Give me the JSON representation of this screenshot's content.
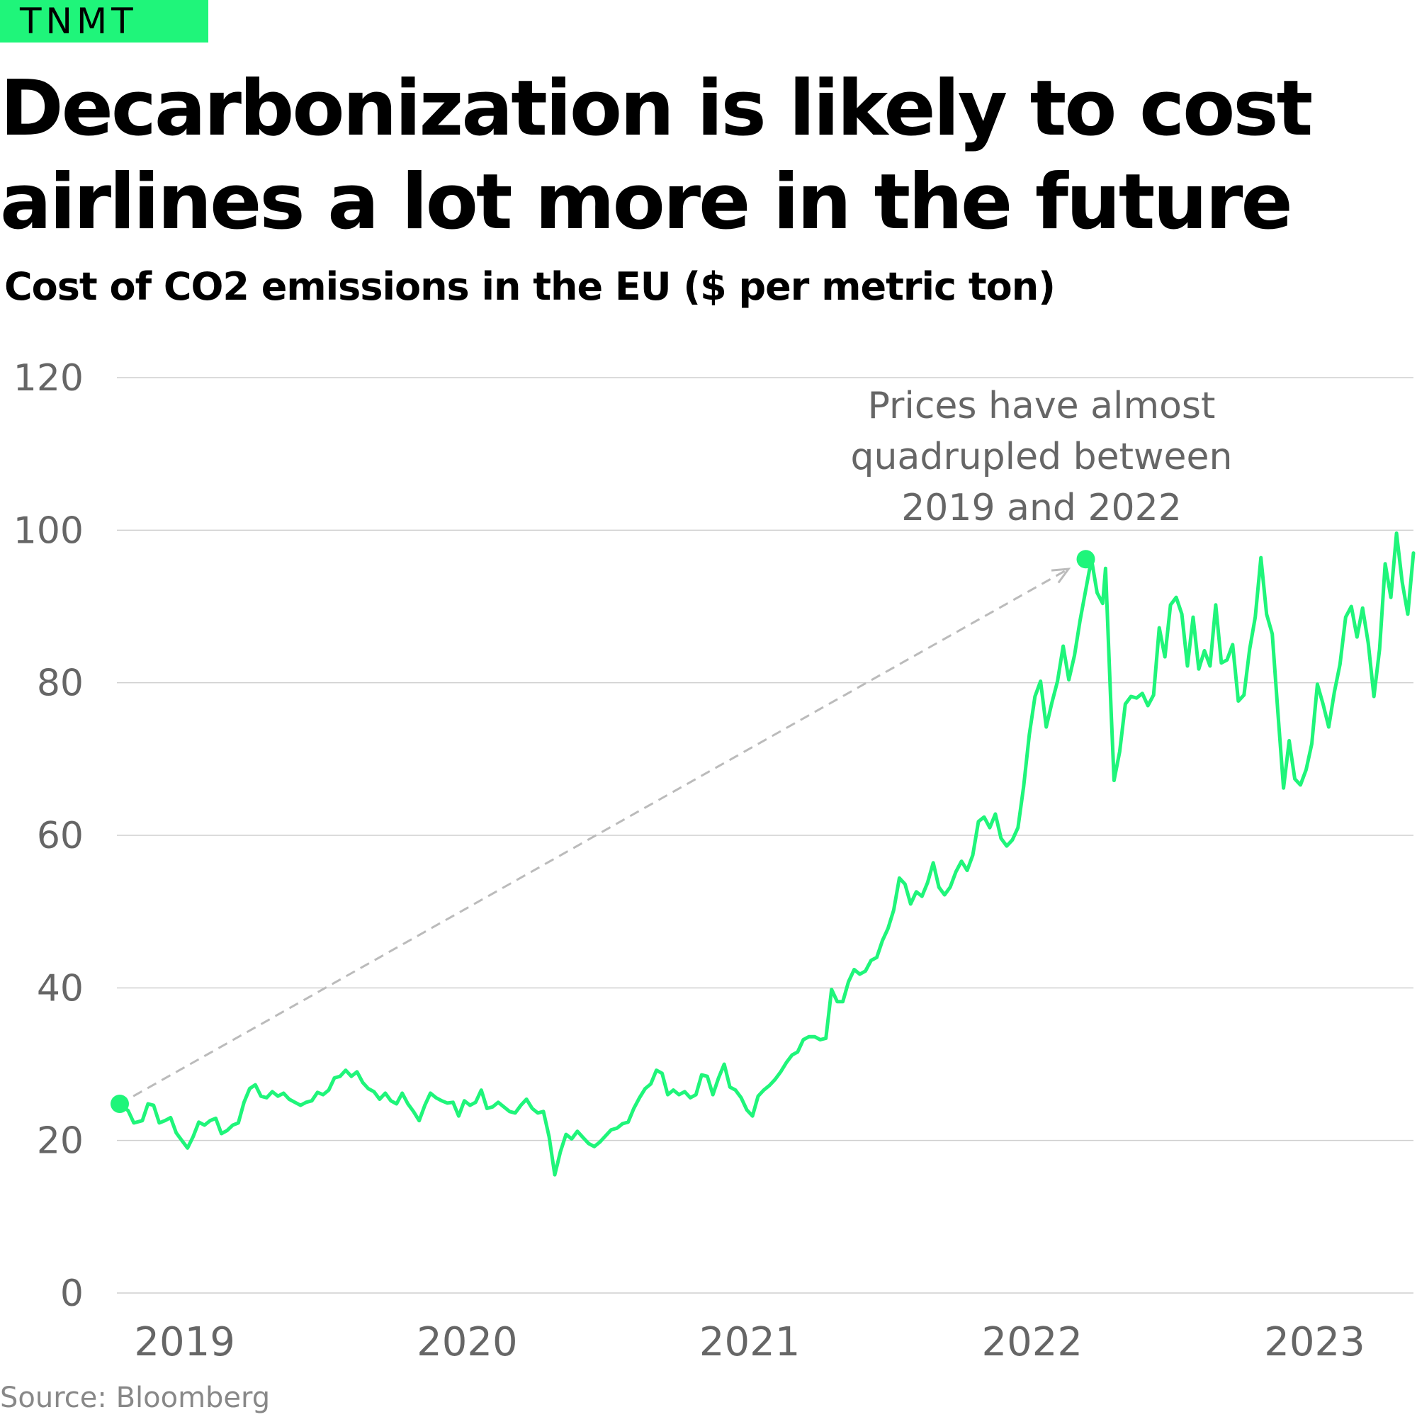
{
  "logo": {
    "text": "TNMT",
    "color": "#1ff57a"
  },
  "header": {
    "title": "Decarbonization is likely to cost airlines a lot more in the future",
    "subtitle": "Cost of CO2 emissions in the EU ($ per metric ton)"
  },
  "footer": {
    "source": "Source: Bloomberg"
  },
  "chart_data": {
    "type": "line",
    "title": "Decarbonization is likely to cost airlines a lot more in the future",
    "subtitle": "Cost of CO2 emissions in the EU ($ per metric ton)",
    "xlabel": "",
    "ylabel": "",
    "ylim": [
      0,
      120
    ],
    "xlim": [
      2018.76,
      2023.35
    ],
    "yticks": [
      0,
      20,
      40,
      60,
      80,
      100,
      120
    ],
    "xticks": [
      {
        "value": 2019,
        "label": "2019"
      },
      {
        "value": 2020,
        "label": "2020"
      },
      {
        "value": 2021,
        "label": "2021"
      },
      {
        "value": 2022,
        "label": "2022"
      },
      {
        "value": 2023,
        "label": "2023"
      }
    ],
    "grid": true,
    "line_color": "#1ff57a",
    "series": [
      {
        "values": [
          [
            2018.77,
            24.8
          ],
          [
            2018.8,
            23.9
          ],
          [
            2018.82,
            22.3
          ],
          [
            2018.85,
            22.6
          ],
          [
            2018.87,
            24.8
          ],
          [
            2018.89,
            24.6
          ],
          [
            2018.91,
            22.3
          ],
          [
            2018.93,
            22.6
          ],
          [
            2018.95,
            23.0
          ],
          [
            2018.97,
            21.0
          ],
          [
            2018.99,
            20.0
          ],
          [
            2019.01,
            19.0
          ],
          [
            2019.03,
            20.5
          ],
          [
            2019.05,
            22.4
          ],
          [
            2019.07,
            22.0
          ],
          [
            2019.09,
            22.6
          ],
          [
            2019.11,
            22.9
          ],
          [
            2019.13,
            20.9
          ],
          [
            2019.15,
            21.3
          ],
          [
            2019.17,
            22.0
          ],
          [
            2019.19,
            22.3
          ],
          [
            2019.21,
            25.0
          ],
          [
            2019.23,
            26.8
          ],
          [
            2019.25,
            27.3
          ],
          [
            2019.27,
            25.8
          ],
          [
            2019.29,
            25.6
          ],
          [
            2019.31,
            26.4
          ],
          [
            2019.33,
            25.8
          ],
          [
            2019.35,
            26.2
          ],
          [
            2019.37,
            25.4
          ],
          [
            2019.39,
            25.0
          ],
          [
            2019.41,
            24.6
          ],
          [
            2019.43,
            25.0
          ],
          [
            2019.45,
            25.2
          ],
          [
            2019.47,
            26.3
          ],
          [
            2019.49,
            26.0
          ],
          [
            2019.51,
            26.6
          ],
          [
            2019.53,
            28.2
          ],
          [
            2019.55,
            28.4
          ],
          [
            2019.57,
            29.2
          ],
          [
            2019.59,
            28.4
          ],
          [
            2019.61,
            29.0
          ],
          [
            2019.63,
            27.6
          ],
          [
            2019.65,
            26.8
          ],
          [
            2019.67,
            26.4
          ],
          [
            2019.69,
            25.4
          ],
          [
            2019.71,
            26.2
          ],
          [
            2019.73,
            25.2
          ],
          [
            2019.75,
            24.8
          ],
          [
            2019.77,
            26.2
          ],
          [
            2019.79,
            24.8
          ],
          [
            2019.81,
            23.8
          ],
          [
            2019.83,
            22.6
          ],
          [
            2019.85,
            24.6
          ],
          [
            2019.87,
            26.2
          ],
          [
            2019.89,
            25.6
          ],
          [
            2019.91,
            25.2
          ],
          [
            2019.93,
            24.9
          ],
          [
            2019.95,
            25.0
          ],
          [
            2019.97,
            23.2
          ],
          [
            2019.99,
            25.2
          ],
          [
            2020.01,
            24.6
          ],
          [
            2020.03,
            25.0
          ],
          [
            2020.05,
            26.6
          ],
          [
            2020.07,
            24.2
          ],
          [
            2020.09,
            24.4
          ],
          [
            2020.11,
            25.0
          ],
          [
            2020.13,
            24.4
          ],
          [
            2020.15,
            23.8
          ],
          [
            2020.17,
            23.6
          ],
          [
            2020.19,
            24.6
          ],
          [
            2020.21,
            25.4
          ],
          [
            2020.23,
            24.2
          ],
          [
            2020.25,
            23.6
          ],
          [
            2020.27,
            23.8
          ],
          [
            2020.29,
            20.5
          ],
          [
            2020.31,
            15.5
          ],
          [
            2020.32,
            17.0
          ],
          [
            2020.33,
            18.5
          ],
          [
            2020.35,
            20.8
          ],
          [
            2020.37,
            20.2
          ],
          [
            2020.39,
            21.2
          ],
          [
            2020.41,
            20.4
          ],
          [
            2020.43,
            19.6
          ],
          [
            2020.45,
            19.2
          ],
          [
            2020.47,
            19.8
          ],
          [
            2020.49,
            20.6
          ],
          [
            2020.51,
            21.4
          ],
          [
            2020.53,
            21.6
          ],
          [
            2020.55,
            22.2
          ],
          [
            2020.57,
            22.4
          ],
          [
            2020.59,
            24.2
          ],
          [
            2020.61,
            25.6
          ],
          [
            2020.63,
            26.8
          ],
          [
            2020.65,
            27.4
          ],
          [
            2020.67,
            29.2
          ],
          [
            2020.69,
            28.8
          ],
          [
            2020.71,
            26.0
          ],
          [
            2020.73,
            26.6
          ],
          [
            2020.75,
            26.0
          ],
          [
            2020.77,
            26.4
          ],
          [
            2020.79,
            25.6
          ],
          [
            2020.81,
            26.0
          ],
          [
            2020.83,
            28.6
          ],
          [
            2020.85,
            28.4
          ],
          [
            2020.87,
            26.0
          ],
          [
            2020.89,
            28.2
          ],
          [
            2020.91,
            30.0
          ],
          [
            2020.93,
            27.0
          ],
          [
            2020.95,
            26.6
          ],
          [
            2020.97,
            25.6
          ],
          [
            2020.99,
            24.0
          ],
          [
            2021.01,
            23.2
          ],
          [
            2021.03,
            25.8
          ],
          [
            2021.05,
            26.6
          ],
          [
            2021.07,
            27.2
          ],
          [
            2021.09,
            28.0
          ],
          [
            2021.11,
            29.0
          ],
          [
            2021.13,
            30.2
          ],
          [
            2021.15,
            31.2
          ],
          [
            2021.17,
            31.6
          ],
          [
            2021.19,
            33.2
          ],
          [
            2021.21,
            33.6
          ],
          [
            2021.23,
            33.6
          ],
          [
            2021.25,
            33.2
          ],
          [
            2021.27,
            33.4
          ],
          [
            2021.29,
            39.8
          ],
          [
            2021.31,
            38.2
          ],
          [
            2021.33,
            38.2
          ],
          [
            2021.35,
            40.8
          ],
          [
            2021.37,
            42.4
          ],
          [
            2021.39,
            41.8
          ],
          [
            2021.41,
            42.2
          ],
          [
            2021.43,
            43.6
          ],
          [
            2021.45,
            44.0
          ],
          [
            2021.47,
            46.2
          ],
          [
            2021.49,
            47.8
          ],
          [
            2021.51,
            50.2
          ],
          [
            2021.53,
            54.4
          ],
          [
            2021.55,
            53.6
          ],
          [
            2021.57,
            51.0
          ],
          [
            2021.59,
            52.6
          ],
          [
            2021.61,
            52.0
          ],
          [
            2021.63,
            53.8
          ],
          [
            2021.65,
            56.4
          ],
          [
            2021.67,
            53.2
          ],
          [
            2021.69,
            52.2
          ],
          [
            2021.71,
            53.2
          ],
          [
            2021.73,
            55.2
          ],
          [
            2021.75,
            56.6
          ],
          [
            2021.77,
            55.4
          ],
          [
            2021.79,
            57.4
          ],
          [
            2021.81,
            61.8
          ],
          [
            2021.83,
            62.4
          ],
          [
            2021.85,
            61.0
          ],
          [
            2021.87,
            62.8
          ],
          [
            2021.89,
            59.6
          ],
          [
            2021.91,
            58.6
          ],
          [
            2021.93,
            59.4
          ],
          [
            2021.95,
            61.0
          ],
          [
            2021.97,
            66.4
          ],
          [
            2021.99,
            73.2
          ],
          [
            2022.01,
            78.2
          ],
          [
            2022.03,
            80.2
          ],
          [
            2022.05,
            74.2
          ],
          [
            2022.07,
            77.4
          ],
          [
            2022.09,
            80.2
          ],
          [
            2022.11,
            84.8
          ],
          [
            2022.13,
            80.4
          ],
          [
            2022.15,
            83.6
          ],
          [
            2022.17,
            88.2
          ],
          [
            2022.19,
            92.2
          ],
          [
            2022.21,
            96.2
          ],
          [
            2022.23,
            91.8
          ],
          [
            2022.25,
            90.4
          ],
          [
            2022.26,
            95.0
          ],
          [
            2022.28,
            76.0
          ],
          [
            2022.29,
            67.2
          ],
          [
            2022.31,
            71.0
          ],
          [
            2022.33,
            77.2
          ],
          [
            2022.35,
            78.2
          ],
          [
            2022.37,
            78.0
          ],
          [
            2022.39,
            78.6
          ],
          [
            2022.41,
            77.0
          ],
          [
            2022.43,
            78.4
          ],
          [
            2022.45,
            87.2
          ],
          [
            2022.47,
            83.4
          ],
          [
            2022.49,
            90.2
          ],
          [
            2022.51,
            91.2
          ],
          [
            2022.53,
            89.0
          ],
          [
            2022.55,
            82.2
          ],
          [
            2022.57,
            88.6
          ],
          [
            2022.59,
            81.8
          ],
          [
            2022.61,
            84.2
          ],
          [
            2022.63,
            82.2
          ],
          [
            2022.65,
            90.2
          ],
          [
            2022.67,
            82.6
          ],
          [
            2022.69,
            83.0
          ],
          [
            2022.71,
            85.0
          ],
          [
            2022.73,
            77.6
          ],
          [
            2022.75,
            78.4
          ],
          [
            2022.77,
            84.4
          ],
          [
            2022.79,
            88.6
          ],
          [
            2022.81,
            96.4
          ],
          [
            2022.83,
            89.0
          ],
          [
            2022.85,
            86.4
          ],
          [
            2022.87,
            76.2
          ],
          [
            2022.89,
            66.2
          ],
          [
            2022.91,
            72.4
          ],
          [
            2022.93,
            67.4
          ],
          [
            2022.95,
            66.6
          ],
          [
            2022.97,
            68.6
          ],
          [
            2022.99,
            72.0
          ],
          [
            2023.01,
            79.8
          ],
          [
            2023.03,
            77.2
          ],
          [
            2023.05,
            74.2
          ],
          [
            2023.07,
            78.8
          ],
          [
            2023.09,
            82.4
          ],
          [
            2023.11,
            88.6
          ],
          [
            2023.13,
            90.0
          ],
          [
            2023.15,
            86.0
          ],
          [
            2023.17,
            89.8
          ],
          [
            2023.19,
            85.2
          ],
          [
            2023.21,
            78.2
          ],
          [
            2023.23,
            84.4
          ],
          [
            2023.25,
            95.6
          ],
          [
            2023.27,
            91.2
          ],
          [
            2023.29,
            99.6
          ],
          [
            2023.31,
            93.2
          ],
          [
            2023.33,
            89.0
          ],
          [
            2023.35,
            97.0
          ]
        ]
      }
    ],
    "highlights": [
      {
        "x": 2018.77,
        "y": 24.8
      },
      {
        "x": 2022.19,
        "y": 96.2
      }
    ],
    "annotation": {
      "lines": [
        "Prices have almost",
        "quadrupled between",
        "2019 and 2022"
      ],
      "arrow_color": "#bbbbbb"
    }
  }
}
